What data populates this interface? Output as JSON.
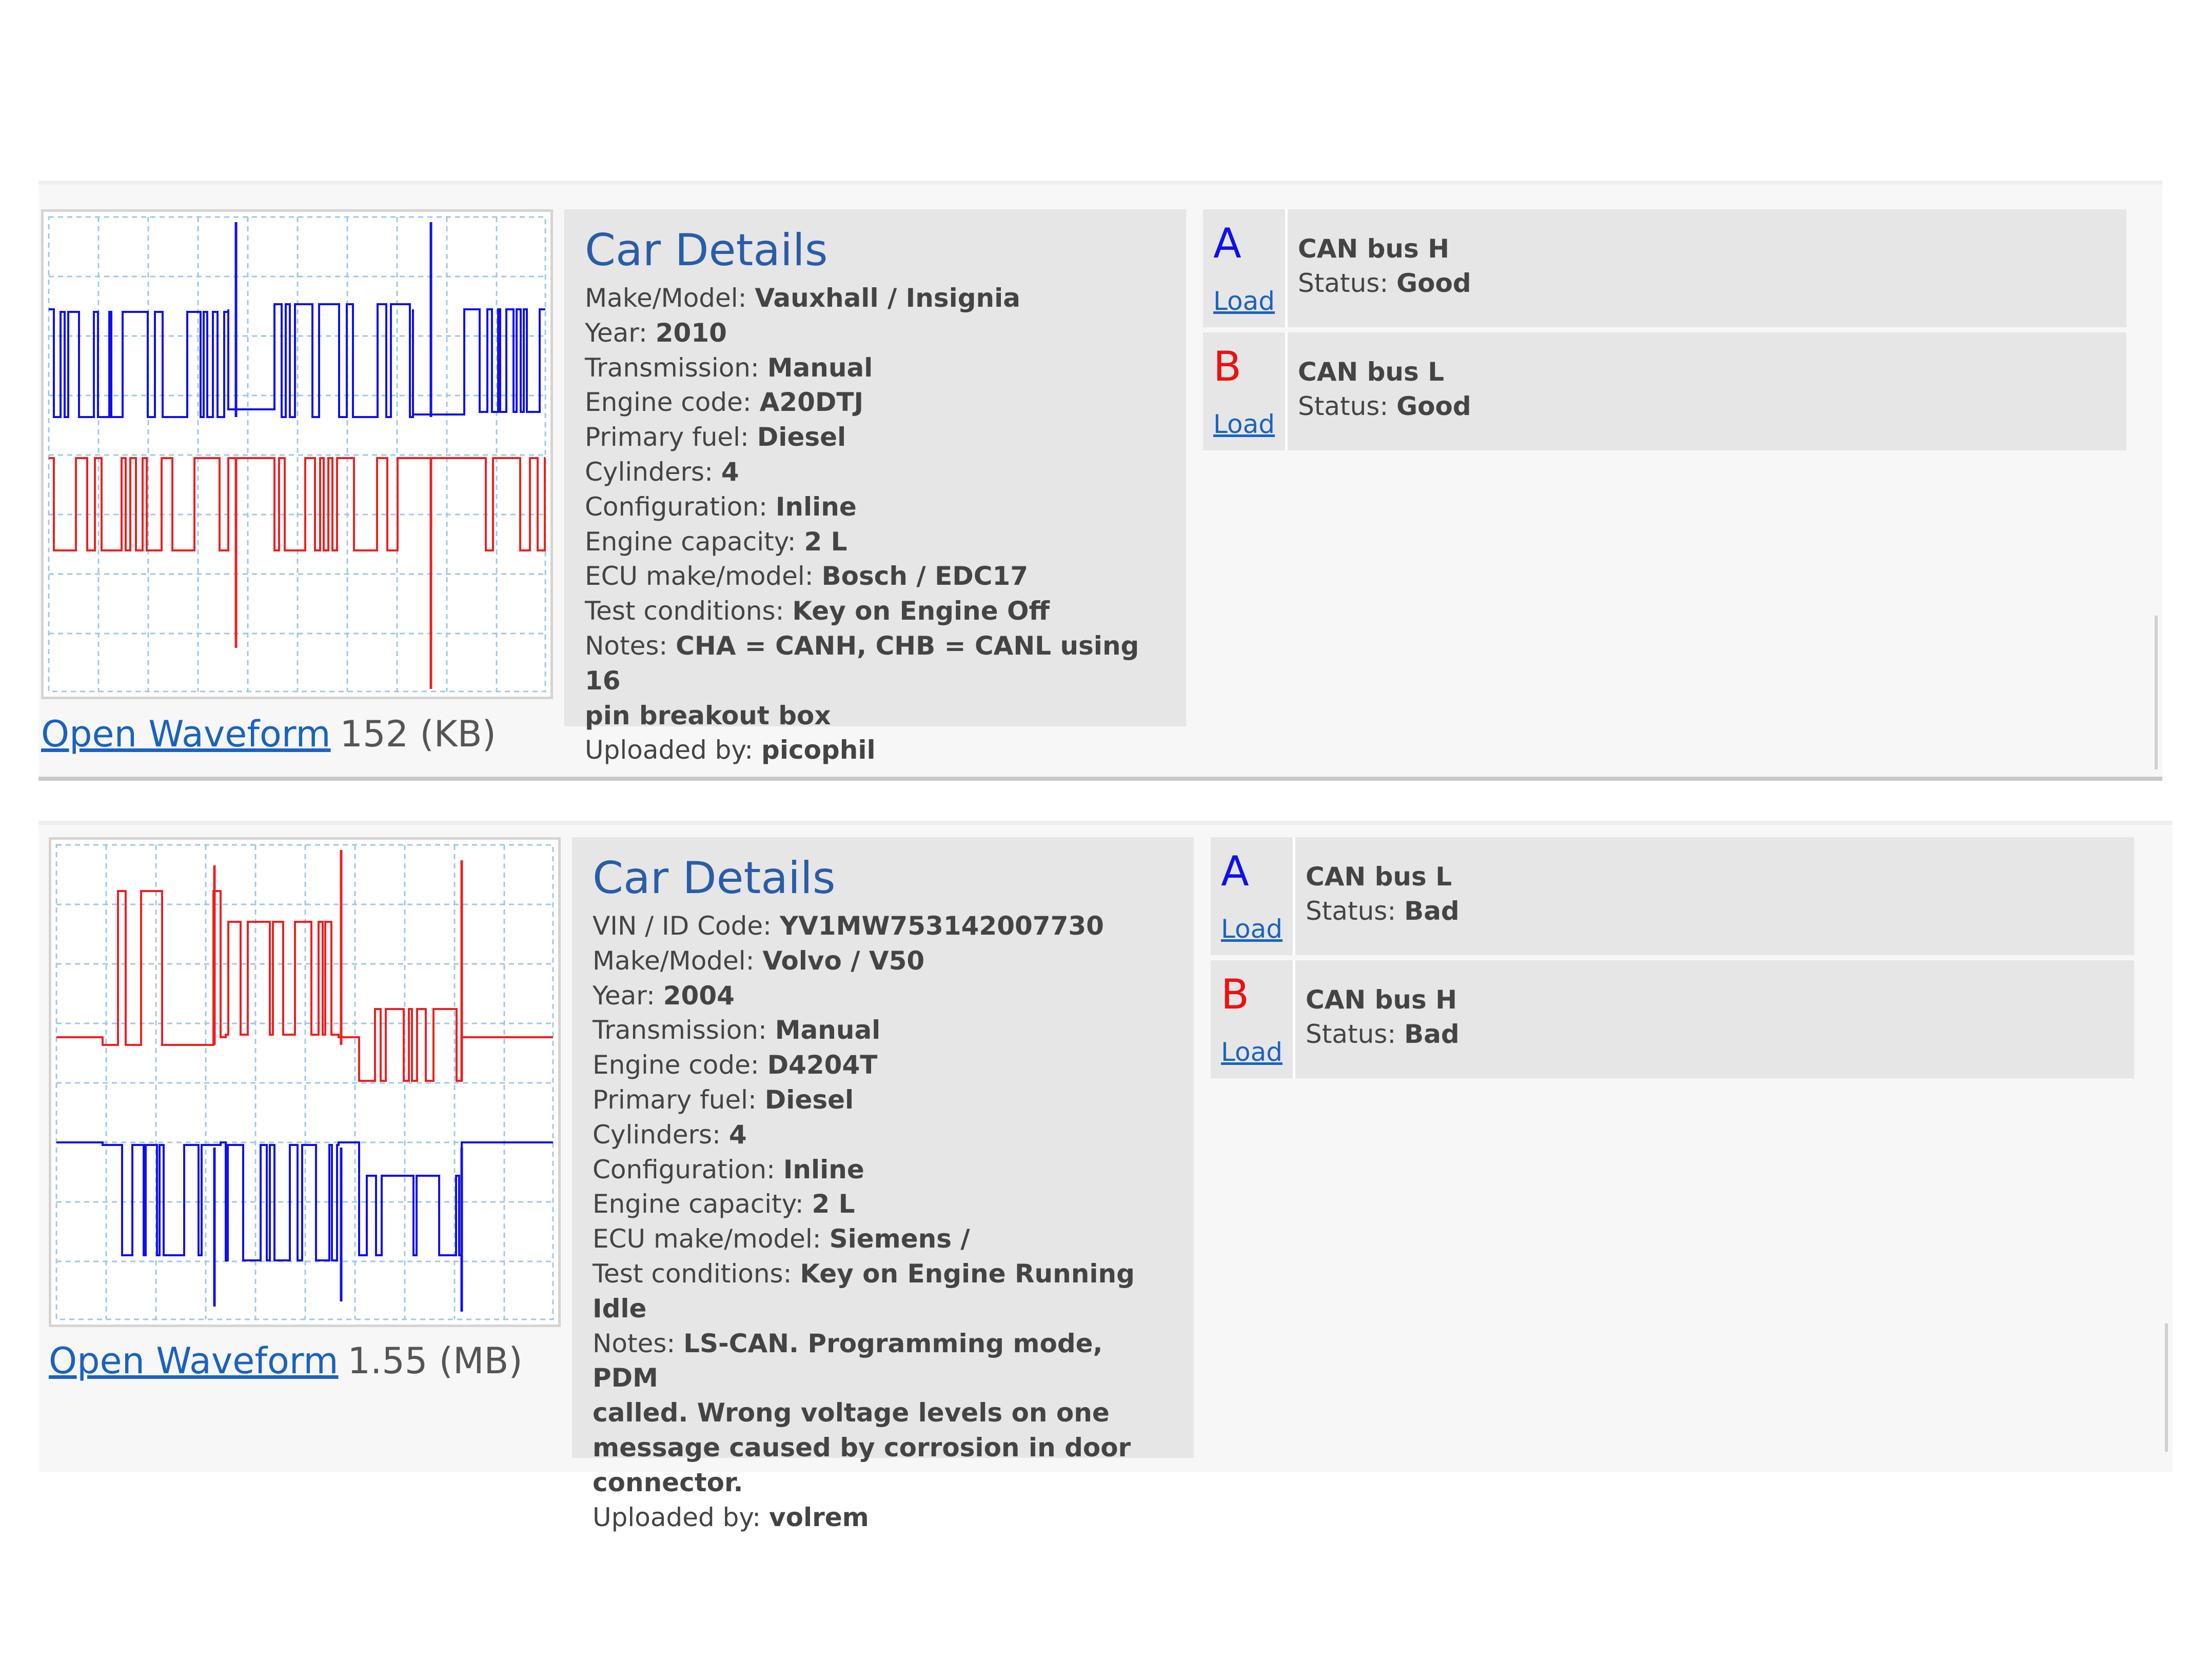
{
  "records": [
    {
      "open_waveform_label": "Open Waveform",
      "file_size": "152 (KB)",
      "details_title": "Car Details",
      "details": [
        {
          "label": "Make/Model: ",
          "value": "Vauxhall / Insignia"
        },
        {
          "label": "Year: ",
          "value": "2010"
        },
        {
          "label": "Transmission: ",
          "value": "Manual"
        },
        {
          "label": "Engine code: ",
          "value": "A20DTJ"
        },
        {
          "label": "Primary fuel: ",
          "value": "Diesel"
        },
        {
          "label": "Cylinders: ",
          "value": "4"
        },
        {
          "label": "Configuration: ",
          "value": "Inline"
        },
        {
          "label": "Engine capacity: ",
          "value": "2 L"
        },
        {
          "label": "ECU make/model: ",
          "value": "Bosch / EDC17"
        },
        {
          "label": "Test conditions: ",
          "value": "Key on Engine Off"
        },
        {
          "label": "Notes: ",
          "value": "CHA = CANH, CHB = CANL using 16"
        },
        {
          "label": "",
          "value": "pin breakout box"
        },
        {
          "label": "Uploaded by: ",
          "value": "picophil"
        }
      ],
      "channels": [
        {
          "letter": "A",
          "letter_color": "#1010ee",
          "load_label": "Load",
          "name": "CAN bus H",
          "status_label": "Status: ",
          "status": "Good"
        },
        {
          "letter": "B",
          "letter_color": "#ee1010",
          "load_label": "Load",
          "name": "CAN bus L",
          "status_label": "Status: ",
          "status": "Good"
        }
      ]
    },
    {
      "open_waveform_label": "Open Waveform",
      "file_size": "1.55 (MB)",
      "details_title": "Car Details",
      "details": [
        {
          "label": "VIN / ID Code: ",
          "value": "YV1MW753142007730"
        },
        {
          "label": "Make/Model: ",
          "value": "Volvo / V50"
        },
        {
          "label": "Year: ",
          "value": "2004"
        },
        {
          "label": "Transmission: ",
          "value": "Manual"
        },
        {
          "label": "Engine code: ",
          "value": "D4204T"
        },
        {
          "label": "Primary fuel: ",
          "value": "Diesel"
        },
        {
          "label": "Cylinders: ",
          "value": "4"
        },
        {
          "label": "Configuration: ",
          "value": "Inline"
        },
        {
          "label": "Engine capacity: ",
          "value": "2 L"
        },
        {
          "label": "ECU make/model: ",
          "value": "Siemens /"
        },
        {
          "label": "Test conditions: ",
          "value": "Key on Engine Running Idle"
        },
        {
          "label": "Notes: ",
          "value": "LS-CAN. Programming mode, PDM"
        },
        {
          "label": "",
          "value": "called. Wrong voltage levels on one"
        },
        {
          "label": "",
          "value": "message caused by corrosion in door"
        },
        {
          "label": "",
          "value": "connector."
        },
        {
          "label": "Uploaded by: ",
          "value": "volrem"
        }
      ],
      "channels": [
        {
          "letter": "A",
          "letter_color": "#1010ee",
          "load_label": "Load",
          "name": "CAN bus L",
          "status_label": "Status: ",
          "status": "Bad"
        },
        {
          "letter": "B",
          "letter_color": "#ee1010",
          "load_label": "Load",
          "name": "CAN bus H",
          "status_label": "Status: ",
          "status": "Bad"
        }
      ]
    }
  ],
  "colors": {
    "blue_trace": "#1010ee",
    "red_trace": "#ee2020",
    "grid": "#9ec8e8",
    "link": "#1a62c0",
    "title": "#2a5ca8"
  }
}
